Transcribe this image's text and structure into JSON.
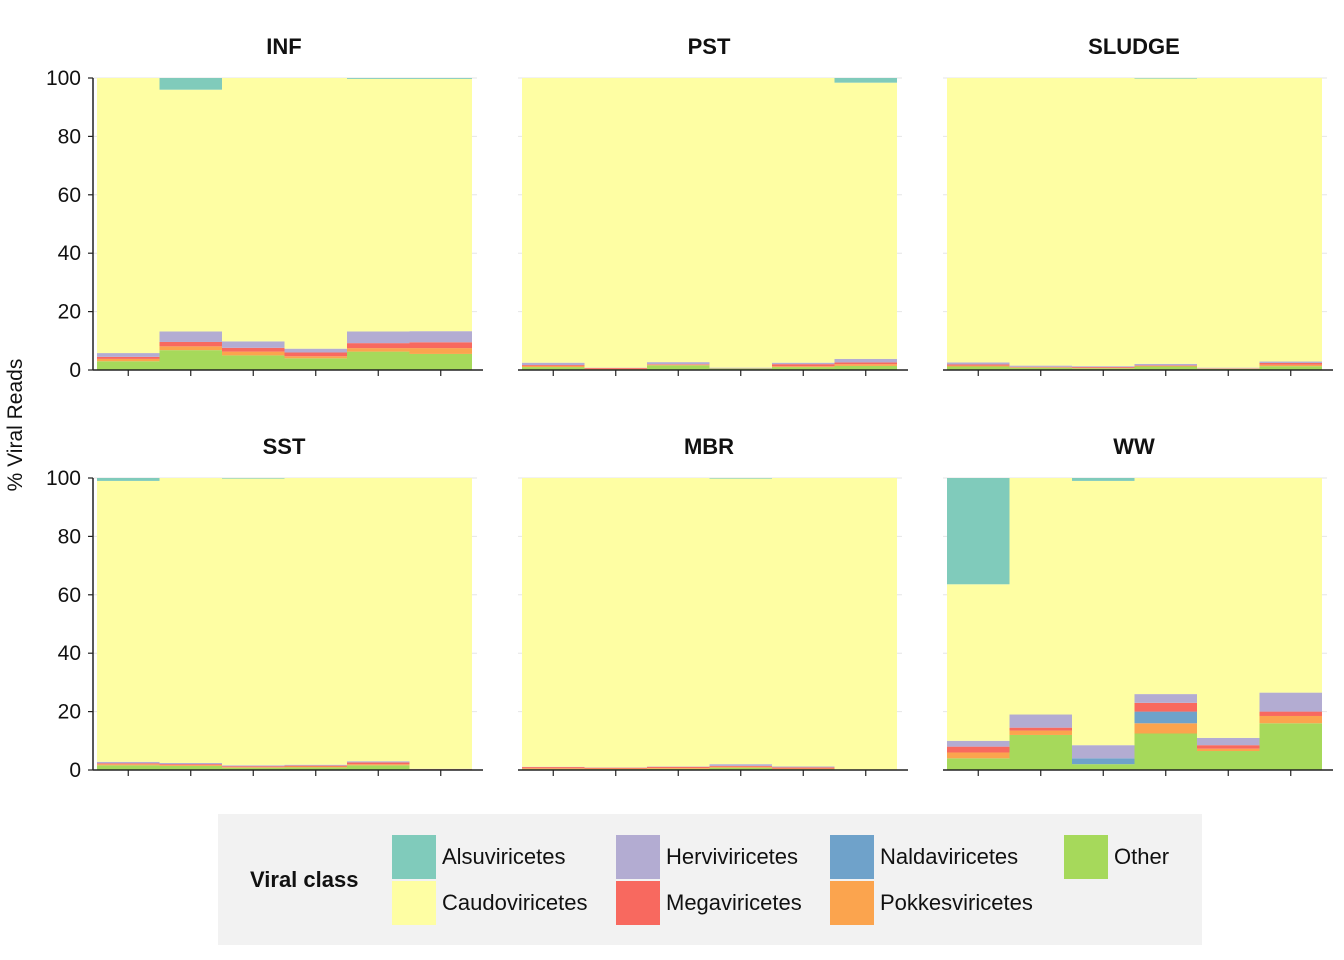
{
  "chart_data": {
    "type": "bar",
    "stacked": true,
    "ylabel": "% Viral Reads",
    "ylim": [
      0,
      100
    ],
    "yticks": [
      0,
      20,
      40,
      60,
      80,
      100
    ],
    "legend": {
      "title": "Viral class",
      "placement": "bottom",
      "entries": [
        "Alsuviricetes",
        "Caudoviricetes",
        "Herviviricetes",
        "Megaviricetes",
        "Naldaviricetes",
        "Pokkesviricetes",
        "Other"
      ]
    },
    "colors": {
      "Other": "#a6d95b",
      "Pokkesviricetes": "#fba44e",
      "Naldaviricetes": "#6fa2ca",
      "Megaviricetes": "#f8695f",
      "Herviviricetes": "#b3acd2",
      "Caudoviricetes": "#fefea3",
      "Alsuviricetes": "#80cbbb"
    },
    "stack_order": [
      "Other",
      "Pokkesviricetes",
      "Naldaviricetes",
      "Megaviricetes",
      "Herviviricetes",
      "Caudoviricetes",
      "Alsuviricetes"
    ],
    "panels": [
      {
        "title": "INF",
        "samples": [
          {
            "Other": 3,
            "Pokkesviricetes": 0.8,
            "Naldaviricetes": 0,
            "Megaviricetes": 0.7,
            "Herviviricetes": 1.3,
            "Caudoviricetes": 94.2,
            "Alsuviricetes": 0
          },
          {
            "Other": 6.8,
            "Pokkesviricetes": 1.3,
            "Naldaviricetes": 0,
            "Megaviricetes": 1.5,
            "Herviviricetes": 3.6,
            "Caudoviricetes": 82.8,
            "Alsuviricetes": 4
          },
          {
            "Other": 5,
            "Pokkesviricetes": 1.3,
            "Naldaviricetes": 0,
            "Megaviricetes": 1.3,
            "Herviviricetes": 2.2,
            "Caudoviricetes": 90.2,
            "Alsuviricetes": 0
          },
          {
            "Other": 4,
            "Pokkesviricetes": 0.7,
            "Naldaviricetes": 0,
            "Megaviricetes": 1.3,
            "Herviviricetes": 1.3,
            "Caudoviricetes": 92.7,
            "Alsuviricetes": 0
          },
          {
            "Other": 6.3,
            "Pokkesviricetes": 1.2,
            "Naldaviricetes": 0,
            "Megaviricetes": 1.7,
            "Herviviricetes": 4,
            "Caudoviricetes": 86.5,
            "Alsuviricetes": 0.3
          },
          {
            "Other": 5.5,
            "Pokkesviricetes": 2,
            "Naldaviricetes": 0,
            "Megaviricetes": 2,
            "Herviviricetes": 3.8,
            "Caudoviricetes": 86.4,
            "Alsuviricetes": 0.3
          }
        ]
      },
      {
        "title": "PST",
        "samples": [
          {
            "Other": 1,
            "Pokkesviricetes": 0.4,
            "Naldaviricetes": 0,
            "Megaviricetes": 0.3,
            "Herviviricetes": 0.8,
            "Caudoviricetes": 97.5,
            "Alsuviricetes": 0
          },
          {
            "Other": 0.2,
            "Pokkesviricetes": 0.2,
            "Naldaviricetes": 0,
            "Megaviricetes": 0.3,
            "Herviviricetes": 0.1,
            "Caudoviricetes": 99.2,
            "Alsuviricetes": 0
          },
          {
            "Other": 1.6,
            "Pokkesviricetes": 0.2,
            "Naldaviricetes": 0,
            "Megaviricetes": 0.2,
            "Herviviricetes": 0.7,
            "Caudoviricetes": 97.3,
            "Alsuviricetes": 0
          },
          {
            "Other": 0.5,
            "Pokkesviricetes": 0,
            "Naldaviricetes": 0,
            "Megaviricetes": 0.1,
            "Herviviricetes": 0.2,
            "Caudoviricetes": 99.2,
            "Alsuviricetes": 0
          },
          {
            "Other": 1,
            "Pokkesviricetes": 0.3,
            "Naldaviricetes": 0,
            "Megaviricetes": 0.7,
            "Herviviricetes": 0.5,
            "Caudoviricetes": 97.5,
            "Alsuviricetes": 0
          },
          {
            "Other": 1.4,
            "Pokkesviricetes": 0.6,
            "Naldaviricetes": 0,
            "Megaviricetes": 0.6,
            "Herviviricetes": 1.2,
            "Caudoviricetes": 94.6,
            "Alsuviricetes": 1.6
          }
        ]
      },
      {
        "title": "SLUDGE",
        "samples": [
          {
            "Other": 1.2,
            "Pokkesviricetes": 0.3,
            "Naldaviricetes": 0,
            "Megaviricetes": 0.4,
            "Herviviricetes": 0.7,
            "Caudoviricetes": 97.4,
            "Alsuviricetes": 0
          },
          {
            "Other": 0.8,
            "Pokkesviricetes": 0.1,
            "Naldaviricetes": 0,
            "Megaviricetes": 0.2,
            "Herviviricetes": 0.4,
            "Caudoviricetes": 98.5,
            "Alsuviricetes": 0
          },
          {
            "Other": 0.6,
            "Pokkesviricetes": 0.1,
            "Naldaviricetes": 0,
            "Megaviricetes": 0.3,
            "Herviviricetes": 0.3,
            "Caudoviricetes": 98.7,
            "Alsuviricetes": 0
          },
          {
            "Other": 1.2,
            "Pokkesviricetes": 0.2,
            "Naldaviricetes": 0,
            "Megaviricetes": 0.2,
            "Herviviricetes": 0.5,
            "Caudoviricetes": 97.7,
            "Alsuviricetes": 0.2
          },
          {
            "Other": 0.4,
            "Pokkesviricetes": 0.1,
            "Naldaviricetes": 0,
            "Megaviricetes": 0.1,
            "Herviviricetes": 0.2,
            "Caudoviricetes": 99.2,
            "Alsuviricetes": 0
          },
          {
            "Other": 1.3,
            "Pokkesviricetes": 0.5,
            "Naldaviricetes": 0,
            "Megaviricetes": 0.6,
            "Herviviricetes": 0.5,
            "Caudoviricetes": 97.1,
            "Alsuviricetes": 0
          }
        ]
      },
      {
        "title": "SST",
        "samples": [
          {
            "Other": 1.6,
            "Pokkesviricetes": 0.4,
            "Naldaviricetes": 0,
            "Megaviricetes": 0.3,
            "Herviviricetes": 0.5,
            "Caudoviricetes": 96.2,
            "Alsuviricetes": 1
          },
          {
            "Other": 1.4,
            "Pokkesviricetes": 0.3,
            "Naldaviricetes": 0,
            "Megaviricetes": 0.3,
            "Herviviricetes": 0.4,
            "Caudoviricetes": 97.6,
            "Alsuviricetes": 0
          },
          {
            "Other": 0.8,
            "Pokkesviricetes": 0.2,
            "Naldaviricetes": 0,
            "Megaviricetes": 0.3,
            "Herviviricetes": 0.3,
            "Caudoviricetes": 98.2,
            "Alsuviricetes": 0.2
          },
          {
            "Other": 0.9,
            "Pokkesviricetes": 0.3,
            "Naldaviricetes": 0,
            "Megaviricetes": 0.3,
            "Herviviricetes": 0.3,
            "Caudoviricetes": 98.2,
            "Alsuviricetes": 0
          },
          {
            "Other": 1.6,
            "Pokkesviricetes": 0.4,
            "Naldaviricetes": 0,
            "Megaviricetes": 0.6,
            "Herviviricetes": 0.4,
            "Caudoviricetes": 97,
            "Alsuviricetes": 0
          },
          {
            "Other": 0.2,
            "Pokkesviricetes": 0,
            "Naldaviricetes": 0,
            "Megaviricetes": 0.1,
            "Herviviricetes": 0.1,
            "Caudoviricetes": 99.6,
            "Alsuviricetes": 0
          }
        ]
      },
      {
        "title": "MBR",
        "samples": [
          {
            "Other": 0.3,
            "Pokkesviricetes": 0.3,
            "Naldaviricetes": 0,
            "Megaviricetes": 0.4,
            "Herviviricetes": 0.1,
            "Caudoviricetes": 98.9,
            "Alsuviricetes": 0
          },
          {
            "Other": 0.3,
            "Pokkesviricetes": 0.2,
            "Naldaviricetes": 0,
            "Megaviricetes": 0.3,
            "Herviviricetes": 0.1,
            "Caudoviricetes": 99.1,
            "Alsuviricetes": 0
          },
          {
            "Other": 0.4,
            "Pokkesviricetes": 0.3,
            "Naldaviricetes": 0,
            "Megaviricetes": 0.4,
            "Herviviricetes": 0.1,
            "Caudoviricetes": 98.8,
            "Alsuviricetes": 0
          },
          {
            "Other": 0.8,
            "Pokkesviricetes": 0.3,
            "Naldaviricetes": 0,
            "Megaviricetes": 0.3,
            "Herviviricetes": 0.6,
            "Caudoviricetes": 97.8,
            "Alsuviricetes": 0.2
          },
          {
            "Other": 0.3,
            "Pokkesviricetes": 0.2,
            "Naldaviricetes": 0,
            "Megaviricetes": 0.4,
            "Herviviricetes": 0.3,
            "Caudoviricetes": 98.8,
            "Alsuviricetes": 0
          },
          {
            "Other": 0.1,
            "Pokkesviricetes": 0,
            "Naldaviricetes": 0,
            "Megaviricetes": 0.1,
            "Herviviricetes": 0,
            "Caudoviricetes": 99.8,
            "Alsuviricetes": 0
          }
        ]
      },
      {
        "title": "WW",
        "samples": [
          {
            "Other": 4,
            "Pokkesviricetes": 2,
            "Naldaviricetes": 0,
            "Megaviricetes": 2,
            "Herviviricetes": 2,
            "Caudoviricetes": 53.6,
            "Alsuviricetes": 36.4
          },
          {
            "Other": 12,
            "Pokkesviricetes": 1.5,
            "Naldaviricetes": 0,
            "Megaviricetes": 1,
            "Herviviricetes": 4.5,
            "Caudoviricetes": 81,
            "Alsuviricetes": 0
          },
          {
            "Other": 2,
            "Pokkesviricetes": 0,
            "Naldaviricetes": 2,
            "Megaviricetes": 0,
            "Herviviricetes": 4.5,
            "Caudoviricetes": 90.5,
            "Alsuviricetes": 1
          },
          {
            "Other": 12.5,
            "Pokkesviricetes": 3.5,
            "Naldaviricetes": 4,
            "Megaviricetes": 3,
            "Herviviricetes": 3,
            "Caudoviricetes": 74,
            "Alsuviricetes": 0
          },
          {
            "Other": 6.5,
            "Pokkesviricetes": 0.8,
            "Naldaviricetes": 0,
            "Megaviricetes": 1.2,
            "Herviviricetes": 2.5,
            "Caudoviricetes": 89,
            "Alsuviricetes": 0
          },
          {
            "Other": 16,
            "Pokkesviricetes": 2.5,
            "Naldaviricetes": 0,
            "Megaviricetes": 1.5,
            "Herviviricetes": 6.5,
            "Caudoviricetes": 73.5,
            "Alsuviricetes": 0
          }
        ]
      }
    ]
  }
}
